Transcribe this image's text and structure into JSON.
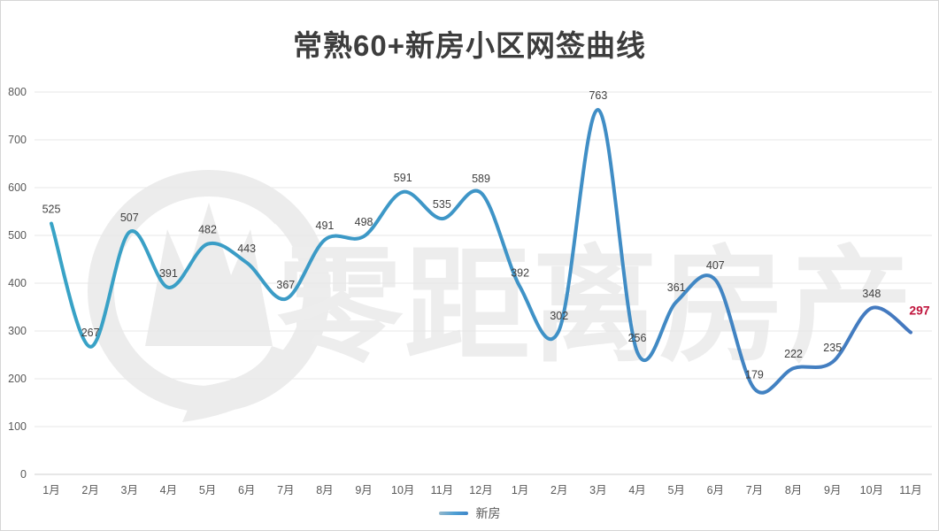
{
  "title": "常熟60+新房小区网签曲线",
  "legend": {
    "label": "新房"
  },
  "watermark": {
    "text": "零距离房产"
  },
  "colors": {
    "line_gradient_start": "#38a3c6",
    "line_gradient_end": "#4478bf",
    "title": "#3d3d3d",
    "axis_text": "#595959",
    "data_label": "#404040",
    "grid": "#e7e7e7",
    "axis_line": "#cfcfcf",
    "watermark": "#ececec",
    "highlight_label": "#c0143c"
  },
  "chart_data": {
    "type": "line",
    "title": "常熟60+新房小区网签曲线",
    "series": [
      {
        "name": "新房",
        "values": [
          525,
          267,
          507,
          391,
          482,
          443,
          367,
          491,
          498,
          591,
          535,
          589,
          392,
          302,
          763,
          256,
          361,
          407,
          179,
          222,
          235,
          348,
          297
        ]
      }
    ],
    "categories": [
      "1月",
      "2月",
      "3月",
      "4月",
      "5月",
      "6月",
      "7月",
      "8月",
      "9月",
      "10月",
      "11月",
      "12月",
      "1月",
      "2月",
      "3月",
      "4月",
      "5月",
      "6月",
      "7月",
      "8月",
      "9月",
      "10月",
      "11月"
    ],
    "xlabel": "",
    "ylabel": "",
    "ylim": [
      0,
      800
    ],
    "ytick_interval": 100,
    "yticks": [
      0,
      100,
      200,
      300,
      400,
      500,
      600,
      700,
      800
    ],
    "grid": true,
    "smooth": true,
    "data_labels": true,
    "last_point_highlighted": true,
    "legend_position": "bottom"
  }
}
